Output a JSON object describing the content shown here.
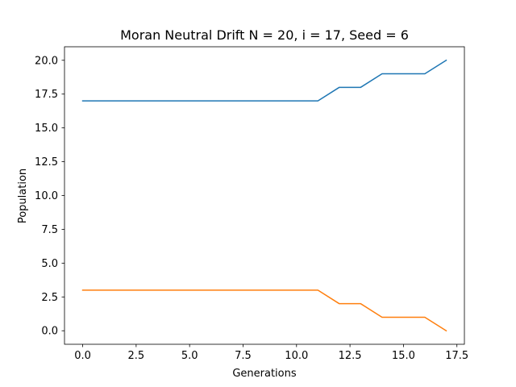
{
  "chart_data": {
    "type": "line",
    "title": "Moran Neutral Drift N = 20, i = 17, Seed = 6",
    "xlabel": "Generations",
    "ylabel": "Population",
    "xlim": [
      -0.85,
      17.85
    ],
    "ylim": [
      -1.0,
      21.0
    ],
    "xticks": [
      0,
      2.5,
      5,
      7.5,
      10,
      12.5,
      15,
      17.5
    ],
    "xtick_labels": [
      "0.0",
      "2.5",
      "5.0",
      "7.5",
      "10.0",
      "12.5",
      "15.0",
      "17.5"
    ],
    "yticks": [
      0,
      2.5,
      5,
      7.5,
      10,
      12.5,
      15,
      17.5,
      20
    ],
    "ytick_labels": [
      "0.0",
      "2.5",
      "5.0",
      "7.5",
      "10.0",
      "12.5",
      "15.0",
      "17.5",
      "20.0"
    ],
    "grid": false,
    "x": [
      0,
      1,
      2,
      3,
      4,
      5,
      6,
      7,
      8,
      9,
      10,
      11,
      12,
      13,
      14,
      15,
      16,
      17
    ],
    "series": [
      {
        "color": "#1f77b4",
        "values": [
          17,
          17,
          17,
          17,
          17,
          17,
          17,
          17,
          17,
          17,
          17,
          17,
          18,
          18,
          19,
          19,
          19,
          20
        ]
      },
      {
        "color": "#ff7f0e",
        "values": [
          3,
          3,
          3,
          3,
          3,
          3,
          3,
          3,
          3,
          3,
          3,
          3,
          2,
          2,
          1,
          1,
          1,
          0
        ]
      }
    ]
  }
}
